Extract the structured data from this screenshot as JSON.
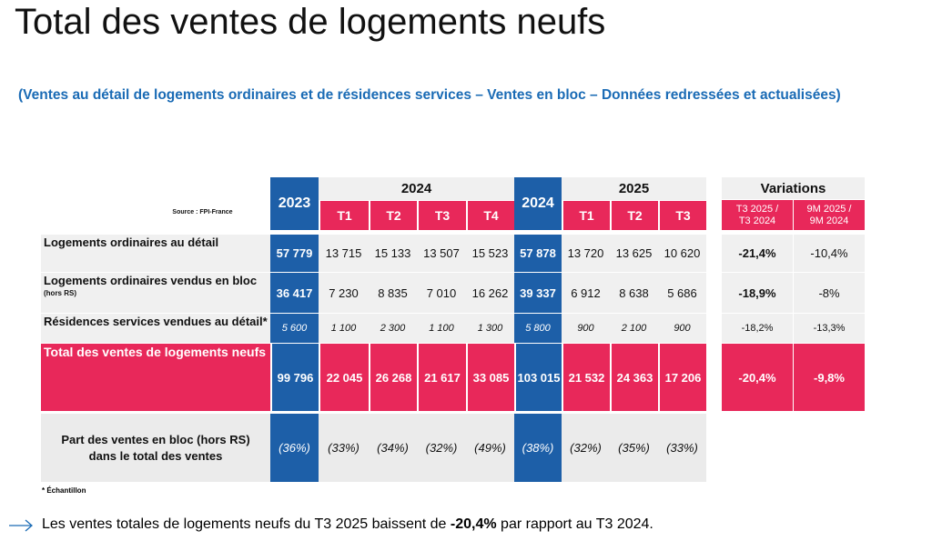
{
  "title": "Total des ventes de logements neufs",
  "subtitle": "(Ventes au détail de logements ordinaires et de résidences services – Ventes en bloc – Données redressées et actualisées)",
  "table": {
    "source": "Source : FPI-France",
    "annual_headers": [
      "2023",
      "2024"
    ],
    "groups": [
      "2024",
      "2025",
      "Variations"
    ],
    "quarters_2024": [
      "T1",
      "T2",
      "T3",
      "T4"
    ],
    "quarters_2025": [
      "T1",
      "T2",
      "T3"
    ],
    "variation_headers": [
      [
        "T3 2025 /",
        "T3 2024"
      ],
      [
        "9M 2025 /",
        "9M 2024"
      ]
    ],
    "rows": [
      {
        "label": "Logements ordinaires au détail",
        "values": [
          "57 779",
          "13 715",
          "15 133",
          "13 507",
          "15 523",
          "57 878",
          "13 720",
          "13 625",
          "10 620"
        ],
        "variations": [
          "-21,4%",
          "-10,4%"
        ]
      },
      {
        "label": "Logements ordinaires vendus en bloc",
        "note": "(hors RS)",
        "values": [
          "36 417",
          "7 230",
          "8 835",
          "7 010",
          "16 262",
          "39 337",
          "6 912",
          "8 638",
          "5 686"
        ],
        "variations": [
          "-18,9%",
          "-8%"
        ]
      },
      {
        "label": "Résidences services vendues au détail*",
        "values": [
          "5 600",
          "1 100",
          "2 300",
          "1 100",
          "1 300",
          "5 800",
          "900",
          "2 100",
          "900"
        ],
        "variations": [
          "-18,2%",
          "-13,3%"
        ]
      },
      {
        "label": "Total des ventes de logements neufs",
        "values": [
          "99 796",
          "22 045",
          "26 268",
          "21 617",
          "33 085",
          "103 015",
          "21 532",
          "24 363",
          "17 206"
        ],
        "variations": [
          "-20,4%",
          "-9,8%"
        ]
      },
      {
        "label": "Part des ventes en bloc (hors RS) dans le total des ventes",
        "values": [
          "(36%)",
          "(33%)",
          "(34%)",
          "(32%)",
          "(49%)",
          "(38%)",
          "(32%)",
          "(35%)",
          "(33%)"
        ]
      }
    ]
  },
  "footnote": "* Échantillon",
  "conclusion": {
    "before": "Les ventes totales de logements neufs du T3 2025 baissent de ",
    "highlight": "-20,4%",
    "after": " par rapport au T3 2024."
  }
}
